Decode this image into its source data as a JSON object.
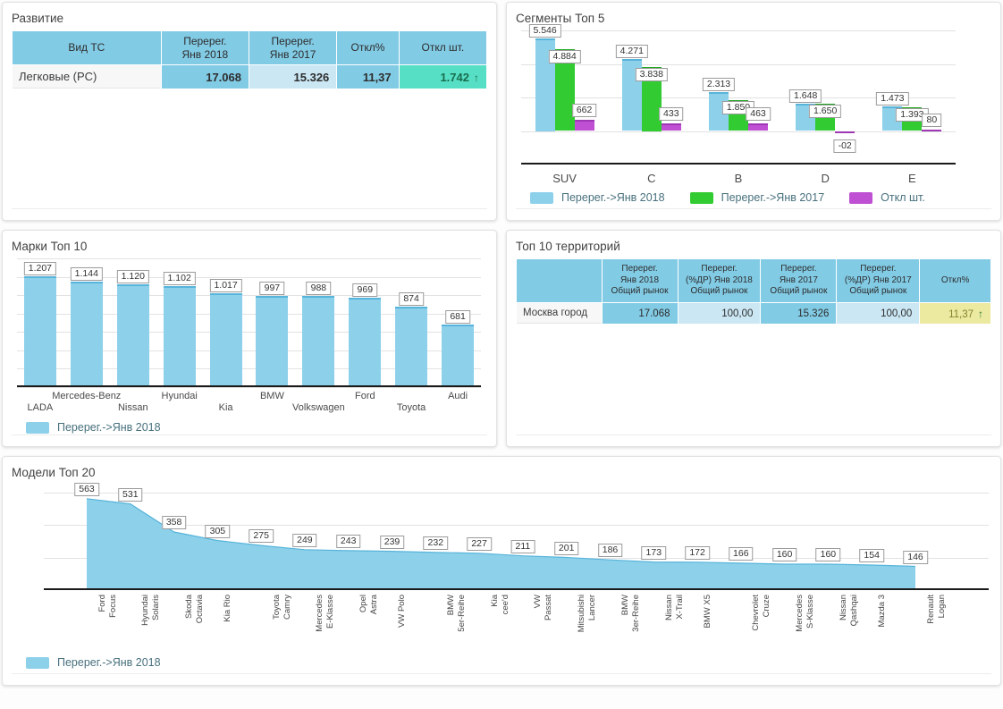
{
  "panels": [
    {
      "id": "development",
      "title": "Развитие"
    },
    {
      "id": "segments",
      "title": "Сегменты Топ 5"
    },
    {
      "id": "brands",
      "title": "Марки Топ 10"
    },
    {
      "id": "territories",
      "title": "Топ 10 территорий"
    },
    {
      "id": "models",
      "title": "Модели Топ 20"
    }
  ],
  "tables": {
    "development": {
      "headers": [
        [
          "Вид ТС"
        ],
        [
          "Перерег.",
          "Янв 2018"
        ],
        [
          "Перерег.",
          "Янв 2017"
        ],
        [
          "Откл%"
        ],
        [
          "Откл шт."
        ]
      ],
      "col_widths": [
        "31.5%",
        "18.5%",
        "18.5%",
        "13%",
        "18.5%"
      ],
      "rows": [
        {
          "name": "Легковые (PC)",
          "cells": [
            {
              "text": "17.068",
              "style": "blue"
            },
            {
              "text": "15.326",
              "style": "lightblue"
            },
            {
              "text": "11,37",
              "style": "blue"
            },
            {
              "text": "1.742",
              "style": "teal",
              "arrow": "up"
            }
          ]
        }
      ]
    },
    "territories": {
      "headers": [
        [
          ""
        ],
        [
          "Перерег.",
          "Янв 2018",
          "Общий рынок"
        ],
        [
          "Перерег.",
          "(%ДР) Янв 2018",
          "Общий рынок"
        ],
        [
          "Перерег.",
          "Янв 2017",
          "Общий рынок"
        ],
        [
          "Перерег.",
          "(%ДР) Янв 2017",
          "Общий рынок"
        ],
        [
          "Откл%"
        ]
      ],
      "col_widths": [
        "18%",
        "16%",
        "17.5%",
        "16%",
        "17.5%",
        "15%"
      ],
      "rows": [
        {
          "name": "Москва город",
          "cells": [
            {
              "text": "17.068",
              "style": "blue"
            },
            {
              "text": "100,00",
              "style": "lightblue"
            },
            {
              "text": "15.326",
              "style": "blue"
            },
            {
              "text": "100,00",
              "style": "lightblue"
            },
            {
              "text": "11,37",
              "style": "yellow",
              "arrow": "up"
            }
          ]
        }
      ]
    }
  },
  "chart_data": [
    {
      "id": "segments",
      "type": "bar",
      "title": "Сегменты Топ 5",
      "categories": [
        "SUV",
        "C",
        "B",
        "D",
        "E"
      ],
      "series": [
        {
          "name": "Перерег.->Янв 2018",
          "color": "#8dd0ea",
          "cap": "#57b4da",
          "values": [
            5546,
            4271,
            2313,
            1648,
            1473
          ],
          "labels": [
            "5.546",
            "4.271",
            "2.313",
            "1.648",
            "1.473"
          ]
        },
        {
          "name": "Перерег.->Янв 2017",
          "color": "#32cb32",
          "cap": "#21a821",
          "values": [
            4884,
            3838,
            1850,
            1650,
            1393
          ],
          "labels": [
            "4.884",
            "3.838",
            "1.850",
            "1.650",
            "1.393"
          ]
        },
        {
          "name": "Откл шт.",
          "color": "#bf4fd3",
          "cap": "#9e37b3",
          "values": [
            662,
            433,
            463,
            -2,
            80
          ],
          "labels": [
            "662",
            "433",
            "463",
            "-02",
            "80"
          ]
        }
      ],
      "ylim": [
        -2000,
        6000
      ],
      "grid_step": 2000,
      "legend_position": "bottom"
    },
    {
      "id": "brands",
      "type": "bar",
      "title": "Марки Топ 10",
      "categories": [
        "LADA",
        "Mercedes-Benz",
        "Nissan",
        "Hyundai",
        "Kia",
        "BMW",
        "Volkswagen",
        "Ford",
        "Toyota",
        "Audi"
      ],
      "series": [
        {
          "name": "Перерег.->Янв 2018",
          "color": "#8dd0ea",
          "cap": "#57b4da",
          "values": [
            1207,
            1144,
            1120,
            1102,
            1017,
            997,
            988,
            969,
            874,
            681
          ],
          "labels": [
            "1.207",
            "1.144",
            "1.120",
            "1.102",
            "1.017",
            "997",
            "988",
            "969",
            "874",
            "681"
          ]
        }
      ],
      "ylim": [
        0,
        1400
      ],
      "grid_step": 200,
      "legend_position": "bottom"
    },
    {
      "id": "models",
      "type": "area",
      "title": "Модели Топ 20",
      "categories": [
        [
          "Ford",
          "Focus"
        ],
        [
          "Hyundai",
          "Solaris"
        ],
        [
          "Skoda",
          "Octavia"
        ],
        [
          "Kia Rio"
        ],
        [
          "Toyota",
          "Camry"
        ],
        [
          "Mercedes",
          "E-Klasse"
        ],
        [
          "Opel",
          "Astra"
        ],
        [
          "VW Polo"
        ],
        [
          "BMW",
          "5er-Reihe"
        ],
        [
          "Kia",
          "cee'd"
        ],
        [
          "VW",
          "Passat"
        ],
        [
          "Mitsubishi",
          "Lancer"
        ],
        [
          "BMW",
          "3er-Reihe"
        ],
        [
          "Nissan",
          "X-Trail"
        ],
        [
          "BMW X5"
        ],
        [
          "Chevrolet",
          "Cruze"
        ],
        [
          "Mercedes",
          "S-Klasse"
        ],
        [
          "Nissan",
          "Qashqai"
        ],
        [
          "Mazda 3"
        ],
        [
          "Renault",
          "Logan"
        ]
      ],
      "series": [
        {
          "name": "Перерег.->Янв 2018",
          "color": "#8dd0ea",
          "cap": "#57b4da",
          "values": [
            563,
            531,
            358,
            305,
            275,
            249,
            243,
            239,
            232,
            227,
            211,
            201,
            186,
            173,
            172,
            166,
            160,
            160,
            154,
            146
          ]
        }
      ],
      "labels": [
        "563",
        "531",
        "358",
        "305",
        "275",
        "249",
        "243",
        "239",
        "232",
        "227",
        "211",
        "201",
        "186",
        "173",
        "172",
        "166",
        "160",
        "160",
        "154",
        "146"
      ],
      "ylim": [
        0,
        650
      ],
      "grid_step": 200,
      "legend_position": "bottom"
    }
  ],
  "colors": {
    "cell-blue": "#82cbe5",
    "cell-lightblue": "#cbe7f4",
    "cell-teal": "#57dfc5",
    "cell-teal-text": "#176d4d",
    "cell-yellow": "#ece9a0",
    "cell-yellow-text": "#83832c",
    "arrow-green": "#2e7d32",
    "name-cell": "#f7f7f7",
    "grid": "#e2e2e2",
    "axis": "#1a1a1a",
    "legend-text": "#47707d"
  }
}
